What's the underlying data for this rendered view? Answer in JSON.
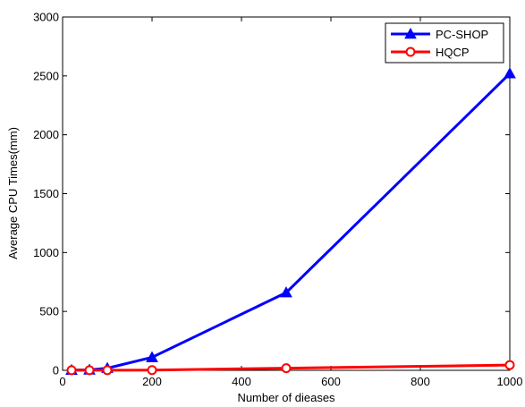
{
  "chart_data": {
    "type": "line",
    "title": "",
    "xlabel": "Number of dieases",
    "ylabel": "Average CPU Times(mm)",
    "xlim": [
      0,
      1000
    ],
    "ylim": [
      0,
      3000
    ],
    "xticks": [
      0,
      200,
      400,
      600,
      800,
      1000
    ],
    "yticks": [
      0,
      500,
      1000,
      1500,
      2000,
      2500,
      3000
    ],
    "grid": false,
    "legend": "top-right",
    "series": [
      {
        "name": "PC-SHOP",
        "color": "#0000ff",
        "marker": "triangle",
        "x": [
          20,
          60,
          100,
          200,
          500,
          1000
        ],
        "y": [
          2,
          4,
          18,
          110,
          660,
          2520
        ]
      },
      {
        "name": "HQCP",
        "color": "#ff0000",
        "marker": "circle",
        "x": [
          20,
          60,
          100,
          200,
          500,
          1000
        ],
        "y": [
          1,
          1,
          1,
          2,
          18,
          45
        ]
      }
    ]
  }
}
